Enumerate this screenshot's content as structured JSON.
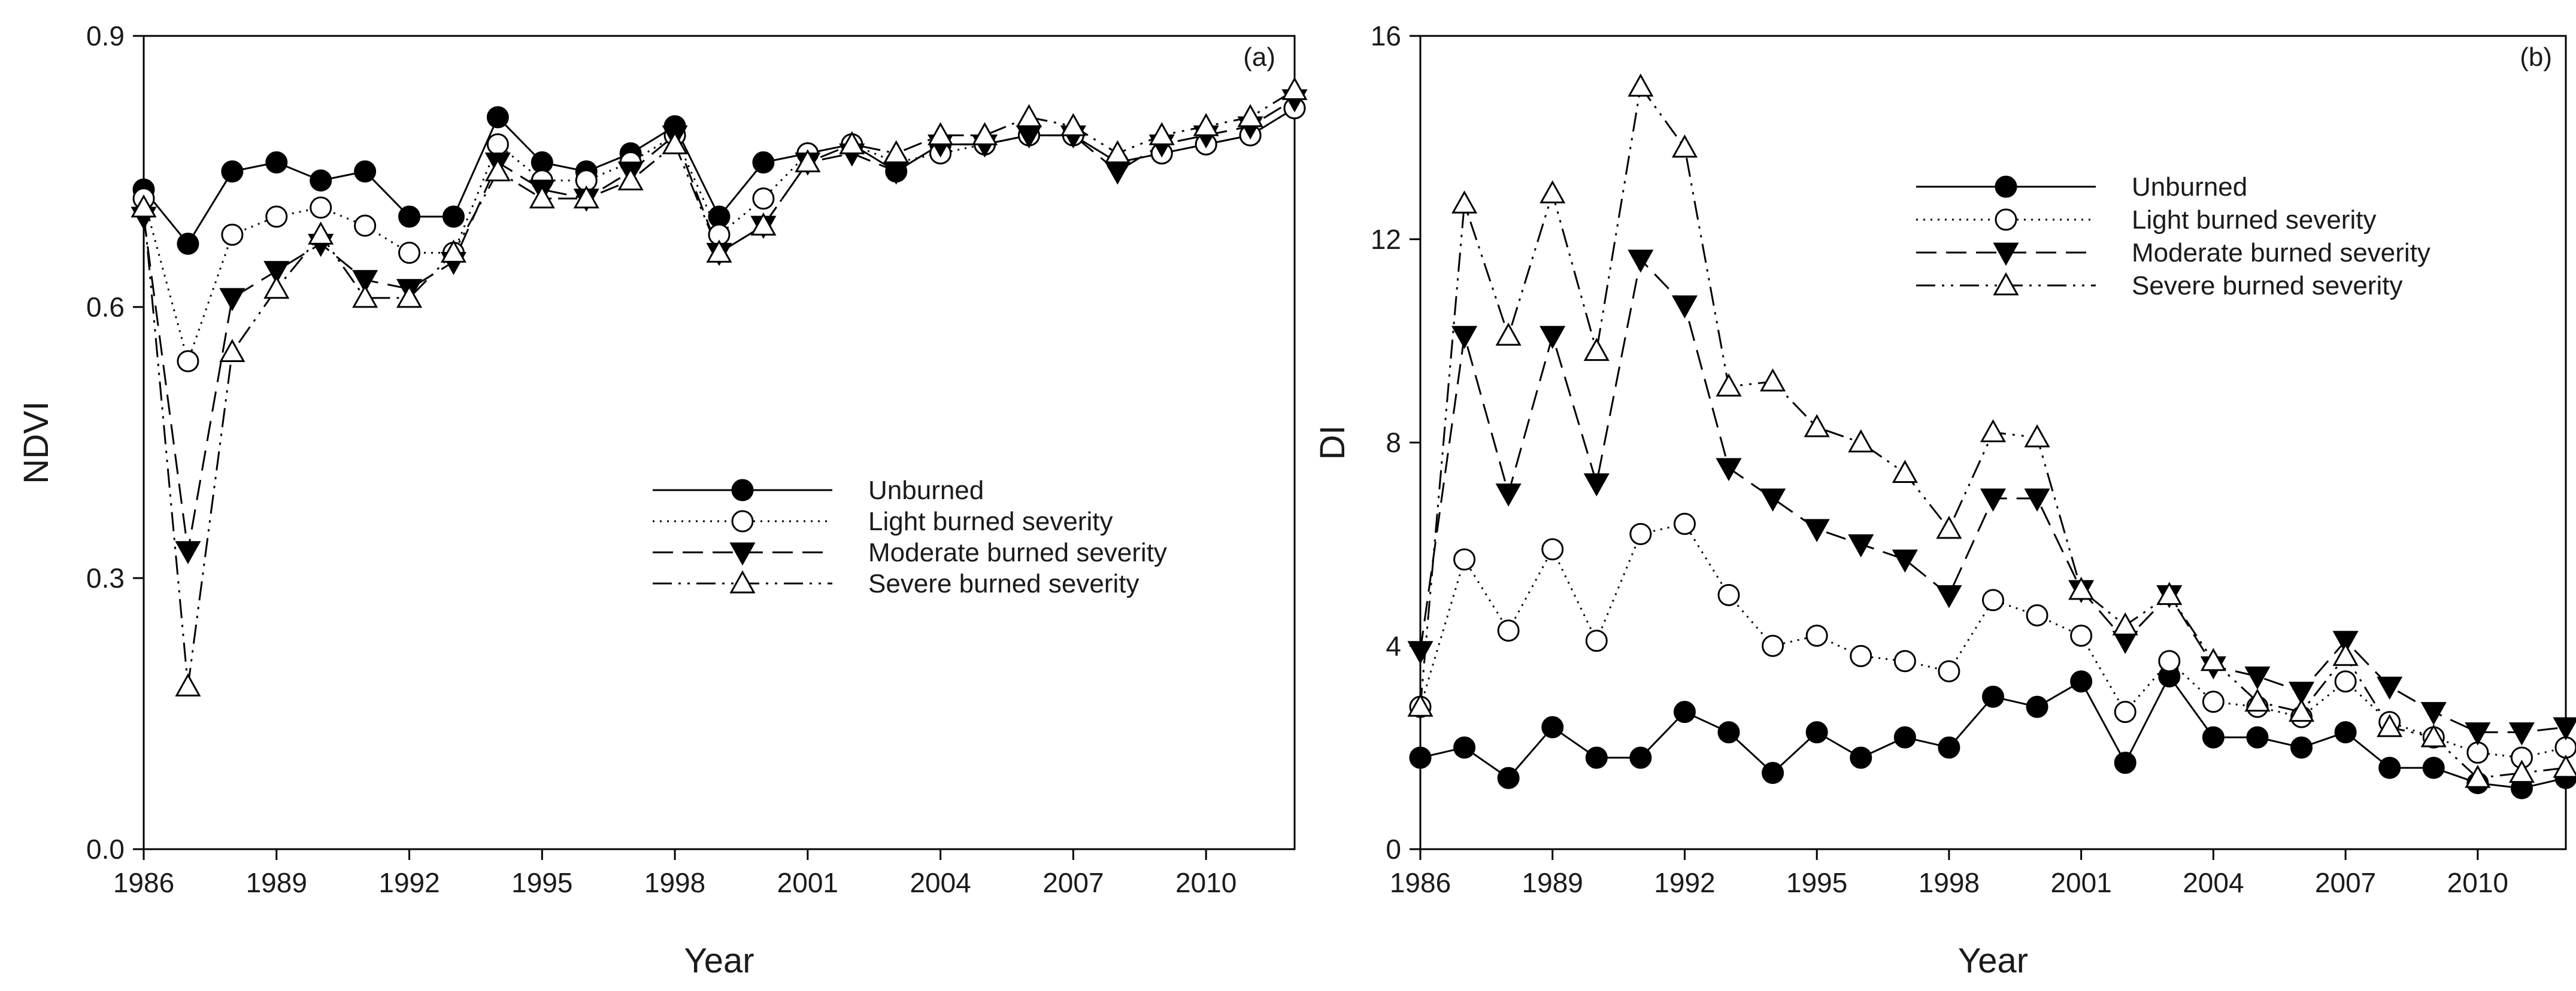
{
  "chart_data": [
    {
      "type": "line",
      "panel_label": "(a)",
      "xlabel": "Year",
      "ylabel": "NDVI",
      "xlim": [
        1986,
        2012
      ],
      "ylim": [
        0.0,
        0.9
      ],
      "x_ticks": [
        1986,
        1989,
        1992,
        1995,
        1998,
        2001,
        2004,
        2007,
        2010
      ],
      "y_ticks": [
        "0.0",
        "0.3",
        "0.6",
        "0.9"
      ],
      "y_tick_values": [
        0.0,
        0.3,
        0.6,
        0.9
      ],
      "grid": false,
      "legend_position": "center-right",
      "x": [
        1986,
        1987,
        1988,
        1989,
        1990,
        1991,
        1992,
        1993,
        1994,
        1995,
        1996,
        1997,
        1998,
        1999,
        2000,
        2001,
        2002,
        2003,
        2004,
        2005,
        2006,
        2007,
        2008,
        2009,
        2010,
        2011,
        2012
      ],
      "series": [
        {
          "name": "Unburned",
          "marker": "filled-circle",
          "dash": "solid",
          "values": [
            0.73,
            0.67,
            0.75,
            0.76,
            0.74,
            0.75,
            0.7,
            0.7,
            0.81,
            0.76,
            0.75,
            0.77,
            0.8,
            0.7,
            0.76,
            0.77,
            0.78,
            0.75,
            0.78,
            0.78,
            0.79,
            0.79,
            0.76,
            0.77,
            0.78,
            0.79,
            0.82
          ]
        },
        {
          "name": "Light burned severity",
          "marker": "open-circle",
          "dash": "dotted",
          "values": [
            0.72,
            0.54,
            0.68,
            0.7,
            0.71,
            0.69,
            0.66,
            0.66,
            0.78,
            0.74,
            0.74,
            0.76,
            0.79,
            0.68,
            0.72,
            0.77,
            0.78,
            0.76,
            0.77,
            0.78,
            0.79,
            0.79,
            0.76,
            0.77,
            0.78,
            0.79,
            0.82
          ]
        },
        {
          "name": "Moderate burned severity",
          "marker": "filled-triangle-down",
          "dash": "dashed",
          "values": [
            0.7,
            0.33,
            0.61,
            0.64,
            0.67,
            0.63,
            0.62,
            0.65,
            0.76,
            0.73,
            0.72,
            0.75,
            0.79,
            0.66,
            0.69,
            0.76,
            0.77,
            0.75,
            0.78,
            0.78,
            0.79,
            0.79,
            0.75,
            0.78,
            0.79,
            0.8,
            0.83
          ]
        },
        {
          "name": "Severe burned severity",
          "marker": "open-triangle-up",
          "dash": "dash-dot-dot",
          "values": [
            0.71,
            0.18,
            0.55,
            0.62,
            0.68,
            0.61,
            0.61,
            0.66,
            0.75,
            0.72,
            0.72,
            0.74,
            0.78,
            0.66,
            0.69,
            0.76,
            0.78,
            0.77,
            0.79,
            0.79,
            0.81,
            0.8,
            0.77,
            0.79,
            0.8,
            0.81,
            0.84
          ]
        }
      ]
    },
    {
      "type": "line",
      "panel_label": "(b)",
      "xlabel": "Year",
      "ylabel": "DI",
      "xlim": [
        1986,
        2012
      ],
      "ylim": [
        0,
        16
      ],
      "x_ticks": [
        1986,
        1989,
        1992,
        1995,
        1998,
        2001,
        2004,
        2007,
        2010
      ],
      "y_ticks": [
        "0",
        "4",
        "8",
        "12",
        "16"
      ],
      "y_tick_values": [
        0,
        4,
        8,
        12,
        16
      ],
      "grid": false,
      "legend_position": "top-center",
      "x": [
        1986,
        1987,
        1988,
        1989,
        1990,
        1991,
        1992,
        1993,
        1994,
        1995,
        1996,
        1997,
        1998,
        1999,
        2000,
        2001,
        2002,
        2003,
        2004,
        2005,
        2006,
        2007,
        2008,
        2009,
        2010,
        2011,
        2012
      ],
      "series": [
        {
          "name": "Unburned",
          "marker": "filled-circle",
          "dash": "solid",
          "values": [
            1.8,
            2.0,
            1.4,
            2.4,
            1.8,
            1.8,
            2.7,
            2.3,
            1.5,
            2.3,
            1.8,
            2.2,
            2.0,
            3.0,
            2.8,
            3.3,
            1.7,
            3.4,
            2.2,
            2.2,
            2.0,
            2.3,
            1.6,
            1.6,
            1.3,
            1.2,
            1.4
          ]
        },
        {
          "name": "Light burned severity",
          "marker": "open-circle",
          "dash": "dotted",
          "values": [
            2.8,
            5.7,
            4.3,
            5.9,
            4.1,
            6.2,
            6.4,
            5.0,
            4.0,
            4.2,
            3.8,
            3.7,
            3.5,
            4.9,
            4.6,
            4.2,
            2.7,
            3.7,
            2.9,
            2.8,
            2.6,
            3.3,
            2.5,
            2.2,
            1.9,
            1.8,
            2.0
          ]
        },
        {
          "name": "Moderate burned severity",
          "marker": "filled-triangle-down",
          "dash": "dashed",
          "values": [
            3.9,
            10.1,
            7.0,
            10.1,
            7.2,
            11.6,
            10.7,
            7.5,
            6.9,
            6.3,
            6.0,
            5.7,
            5.0,
            6.9,
            6.9,
            5.1,
            4.1,
            5.0,
            3.6,
            3.4,
            3.1,
            4.1,
            3.2,
            2.7,
            2.3,
            2.3,
            2.4
          ]
        },
        {
          "name": "Severe burned severity",
          "marker": "open-triangle-up",
          "dash": "dash-dot-dot",
          "values": [
            2.8,
            12.7,
            10.1,
            12.9,
            9.8,
            15.0,
            13.8,
            9.1,
            9.2,
            8.3,
            8.0,
            7.4,
            6.3,
            8.2,
            8.1,
            5.1,
            4.4,
            5.0,
            3.7,
            2.9,
            2.7,
            3.8,
            2.4,
            2.2,
            1.4,
            1.5,
            1.6
          ]
        }
      ]
    }
  ]
}
